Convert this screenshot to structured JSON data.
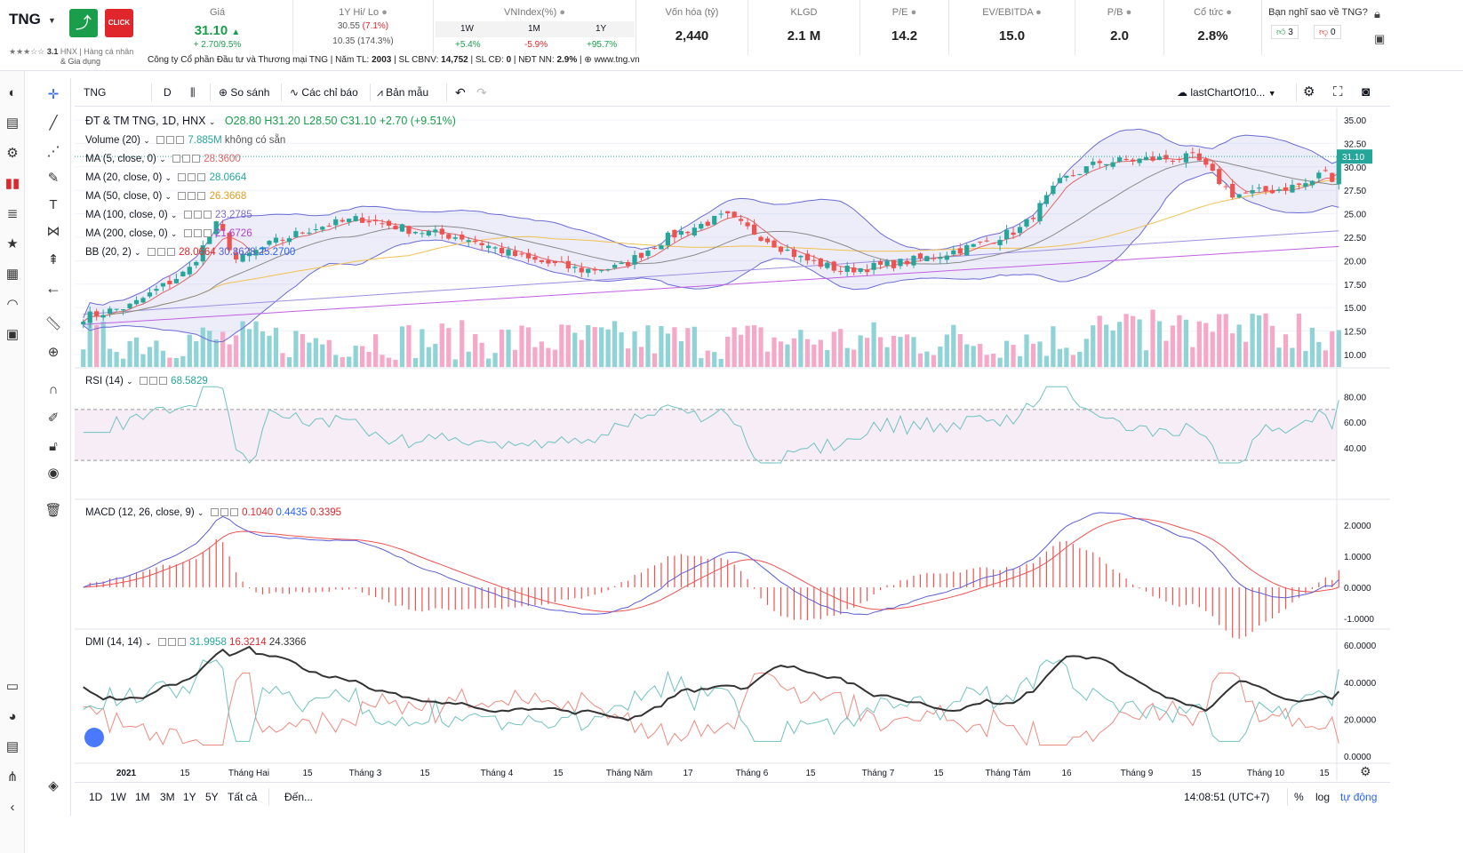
{
  "header": {
    "ticker": "TNG",
    "rating": "3.1",
    "exchange": "HNX",
    "sector": "Hàng cá nhân",
    "sector2": "& Gia dụng",
    "company": "Công ty Cổ phần Đầu tư và Thương mại TNG",
    "founded_label": "Năm TL:",
    "founded": "2003",
    "staff_label": "SL CBNV:",
    "staff": "14,752",
    "cd_label": "SL CĐ:",
    "cd": "0",
    "ndt_label": "NĐT NN:",
    "ndt": "2.9%",
    "website": "www.tng.vn",
    "price_label": "Giá",
    "price": "31.10",
    "price_change": "+ 2.70/9.5%",
    "hilo_label": "1Y Hi/ Lo",
    "hi": "30.55",
    "hi_pct": "(7.1%)",
    "lo": "10.35 (174.3%)",
    "vnindex_label": "VNIndex(%)",
    "vn_periods": [
      "1W",
      "1M",
      "1Y"
    ],
    "vn_values": [
      "+5.4%",
      "-5.9%",
      "+95.7%"
    ],
    "metrics": [
      {
        "label": "Vốn hóa (tỷ)",
        "value": "2,440"
      },
      {
        "label": "KLGD",
        "value": "2.1 M"
      },
      {
        "label": "P/E",
        "value": "14.2"
      },
      {
        "label": "EV/EBITDA",
        "value": "15.0"
      },
      {
        "label": "P/B",
        "value": "2.0"
      },
      {
        "label": "Cổ tức",
        "value": "2.8%"
      }
    ],
    "vote_label": "Bạn nghĩ sao về TNG?",
    "likes": "3",
    "dislikes": "0"
  },
  "toolbar": {
    "symbol": "TNG",
    "interval": "D",
    "compare": "So sánh",
    "indicators": "Các chỉ báo",
    "templates": "Bản mẫu",
    "layout": "lastChartOf10..."
  },
  "legend": {
    "main": "ĐT & TM TNG, 1D, HNX",
    "o": "O28.80",
    "h": "H31.20",
    "l": "L28.50",
    "c": "C31.10",
    "chg": "+2.70 (+9.51%)",
    "volume": "Volume (20)",
    "volume_val": "7.885M",
    "volume_na": "không có sẵn",
    "ma5": "MA (5, close, 0)",
    "ma5_val": "28.3600",
    "ma20": "MA (20, close, 0)",
    "ma20_val": "28.0664",
    "ma50": "MA (50, close, 0)",
    "ma50_val": "26.3668",
    "ma100": "MA (100, close, 0)",
    "ma100_val": "23.2785",
    "ma200": "MA (200, close, 0)",
    "ma200_val": "21.6726",
    "bb": "BB (20, 2)",
    "bb1": "28.0664",
    "bb2": "30.8628",
    "bb3": "25.2700",
    "rsi": "RSI (14)",
    "rsi_val": "68.5829",
    "macd": "MACD (12, 26, close, 9)",
    "macd1": "0.1040",
    "macd2": "0.4435",
    "macd3": "0.3395",
    "dmi": "DMI (14, 14)",
    "dmi1": "31.9958",
    "dmi2": "16.3214",
    "dmi3": "24.3366"
  },
  "price_axis": [
    "35.00",
    "32.50",
    "30.00",
    "27.50",
    "25.00",
    "22.50",
    "20.00",
    "17.50",
    "15.00",
    "12.50",
    "10.00"
  ],
  "last_price_tag": "31.10",
  "rsi_axis": [
    "80.00",
    "60.00",
    "40.00"
  ],
  "macd_axis": [
    "2.0000",
    "1.0000",
    "0.0000",
    "-1.0000"
  ],
  "dmi_axis": [
    "60.0000",
    "40.0000",
    "20.0000",
    "0.0000"
  ],
  "time_axis": [
    "2021",
    "15",
    "Tháng Hai",
    "15",
    "Tháng 3",
    "15",
    "Tháng 4",
    "15",
    "Tháng Năm",
    "17",
    "Tháng 6",
    "15",
    "Tháng 7",
    "15",
    "Tháng Tám",
    "16",
    "Tháng 9",
    "15",
    "Tháng 10",
    "15"
  ],
  "bottom": {
    "ranges": [
      "1D",
      "1W",
      "1M",
      "3M",
      "1Y",
      "5Y",
      "Tất cả"
    ],
    "goto": "Đến...",
    "time": "14:08:51 (UTC+7)",
    "pct": "%",
    "log": "log",
    "auto": "tự động"
  },
  "colors": {
    "up": "#26a69a",
    "down": "#ef5350",
    "vol_up": "#8fd3d6",
    "vol_down": "#f6a8c8",
    "ma5": "#e06666",
    "ma20": "#8a8a8a",
    "ma50": "#f0c050",
    "ma100": "#9c8fe0",
    "ma200": "#c060e0",
    "bb": "#6b6bd6",
    "rsi": "#6fc2c0",
    "macd": "#5b5bd6",
    "signal": "#ef5350",
    "dmi_plus": "#6fc2c0",
    "dmi_minus": "#ef8a80",
    "adx": "#333333"
  }
}
